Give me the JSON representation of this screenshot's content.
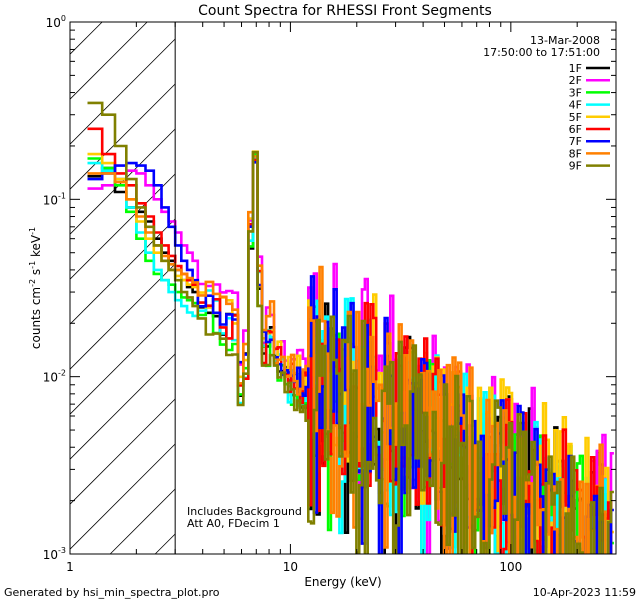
{
  "chart_data": {
    "type": "line",
    "title": "Count Spectra for RHESSI Front Segments",
    "xlabel": "Energy (keV)",
    "ylabel": "counts cm",
    "ylabel_parts": [
      "counts cm",
      "-2",
      " s",
      "-1",
      " keV",
      "-1"
    ],
    "xscale": "log",
    "yscale": "log",
    "xlim": [
      1,
      300
    ],
    "ylim": [
      0.001,
      1
    ],
    "x_ticks": [
      {
        "value": 1,
        "label": "1"
      },
      {
        "value": 10,
        "label": "10"
      },
      {
        "value": 100,
        "label": "100"
      }
    ],
    "y_ticks": [
      {
        "value": 1,
        "base": "10",
        "exp": "0"
      },
      {
        "value": 0.1,
        "base": "10",
        "exp": "-1"
      },
      {
        "value": 0.01,
        "base": "10",
        "exp": "-2"
      },
      {
        "value": 0.001,
        "base": "10",
        "exp": "-3"
      }
    ],
    "hatched_region": [
      1,
      3
    ],
    "vertical_line_x": 3,
    "legend_header": [
      "13-Mar-2008",
      "17:50:00 to 17:51:00"
    ],
    "annotations": [
      "Includes Background",
      "Att A0, FDecim 1"
    ],
    "series": [
      {
        "name": "1F",
        "color": "#000000",
        "offset": 1.0,
        "seed": 11,
        "low": [
          0.135,
          0.15,
          0.11,
          0.09,
          0.085,
          0.075,
          0.06,
          0.05,
          0.045,
          0.04,
          0.035,
          0.032,
          0.03
        ]
      },
      {
        "name": "2F",
        "color": "#ff00ff",
        "offset": 1.35,
        "seed": 23,
        "low": [
          0.115,
          0.12,
          0.13,
          0.145,
          0.14,
          0.12,
          0.1,
          0.085,
          0.075,
          0.065,
          0.055,
          0.05,
          0.045
        ]
      },
      {
        "name": "3F",
        "color": "#00ff00",
        "offset": 0.9,
        "seed": 37,
        "low": [
          0.17,
          0.15,
          0.12,
          0.085,
          0.06,
          0.045,
          0.038,
          0.035,
          0.033,
          0.03,
          0.028,
          0.027,
          0.026
        ]
      },
      {
        "name": "4F",
        "color": "#00ffff",
        "offset": 0.95,
        "seed": 41,
        "low": [
          0.16,
          0.145,
          0.13,
          0.09,
          0.065,
          0.05,
          0.04,
          0.035,
          0.03,
          0.027,
          0.025,
          0.023,
          0.022
        ]
      },
      {
        "name": "5F",
        "color": "#ffcc00",
        "offset": 1.2,
        "seed": 53,
        "low": [
          0.18,
          0.16,
          0.13,
          0.1,
          0.075,
          0.06,
          0.05,
          0.045,
          0.04,
          0.037,
          0.035,
          0.033,
          0.032
        ]
      },
      {
        "name": "6F",
        "color": "#ff0000",
        "offset": 1.05,
        "seed": 67,
        "low": [
          0.25,
          0.18,
          0.14,
          0.12,
          0.095,
          0.08,
          0.065,
          0.055,
          0.048,
          0.042,
          0.038,
          0.035,
          0.033
        ]
      },
      {
        "name": "7F",
        "color": "#0000ff",
        "offset": 1.0,
        "seed": 71,
        "low": [
          0.13,
          0.14,
          0.155,
          0.16,
          0.155,
          0.145,
          0.12,
          0.09,
          0.07,
          0.055,
          0.045,
          0.04,
          0.035
        ]
      },
      {
        "name": "8F",
        "color": "#ff8000",
        "offset": 1.15,
        "seed": 83,
        "low": [
          0.14,
          0.14,
          0.125,
          0.1,
          0.08,
          0.065,
          0.055,
          0.048,
          0.043,
          0.04,
          0.038,
          0.036,
          0.034
        ]
      },
      {
        "name": "9F",
        "color": "#808000",
        "offset": 0.85,
        "seed": 97,
        "low": [
          0.35,
          0.3,
          0.2,
          0.13,
          0.09,
          0.07,
          0.055,
          0.045,
          0.04,
          0.035,
          0.03,
          0.028,
          0.025
        ]
      }
    ],
    "low_energy_edges": [
      1.2,
      1.4,
      1.6,
      1.8,
      2.0,
      2.2,
      2.4,
      2.6,
      2.8,
      3.0,
      3.2,
      3.4,
      3.6
    ],
    "iron_line_peak": {
      "energy": 6.7,
      "value": 0.19
    }
  },
  "footer": {
    "generated_by": "Generated by hsi_min_spectra_plot.pro",
    "timestamp": "10-Apr-2023 11:59"
  }
}
